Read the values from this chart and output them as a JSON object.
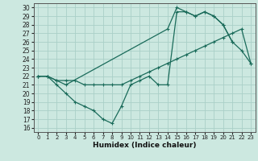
{
  "xlabel": "Humidex (Indice chaleur)",
  "bg_color": "#cce8e0",
  "grid_color": "#aad0c8",
  "line_color": "#1a6b5a",
  "xlim": [
    -0.5,
    23.5
  ],
  "ylim": [
    15.5,
    30.5
  ],
  "xticks": [
    0,
    1,
    2,
    3,
    4,
    5,
    6,
    7,
    8,
    9,
    10,
    11,
    12,
    13,
    14,
    15,
    16,
    17,
    18,
    19,
    20,
    21,
    22,
    23
  ],
  "yticks": [
    16,
    17,
    18,
    19,
    20,
    21,
    22,
    23,
    24,
    25,
    26,
    27,
    28,
    29,
    30
  ],
  "line1_x": [
    0,
    1,
    2,
    3,
    4,
    5,
    6,
    7,
    8,
    9,
    10,
    11,
    12,
    13,
    14,
    15,
    16,
    17,
    18,
    19,
    20,
    21
  ],
  "line1_y": [
    22,
    22,
    21,
    20,
    19,
    18.5,
    18,
    17,
    16.5,
    18.5,
    21,
    21.5,
    22,
    21,
    21,
    29.5,
    29.5,
    29,
    29.5,
    29,
    28,
    26
  ],
  "line2_x": [
    0,
    1,
    2,
    3,
    14,
    15,
    16,
    17,
    18,
    19,
    20,
    21,
    22,
    23
  ],
  "line2_y": [
    22,
    22,
    21.5,
    21,
    27.5,
    30,
    29.5,
    29,
    29.5,
    29,
    28,
    26,
    25,
    23.5
  ],
  "line3_x": [
    0,
    1,
    2,
    3,
    4,
    5,
    6,
    7,
    8,
    9,
    10,
    11,
    12,
    13,
    14,
    15,
    16,
    17,
    18,
    19,
    20,
    21,
    22,
    23
  ],
  "line3_y": [
    22,
    22,
    21.5,
    21.5,
    21.5,
    21,
    21,
    21,
    21,
    21,
    21.5,
    22,
    22.5,
    23,
    23.5,
    24,
    24.5,
    25,
    25.5,
    26,
    26.5,
    27,
    27.5,
    23.5
  ]
}
